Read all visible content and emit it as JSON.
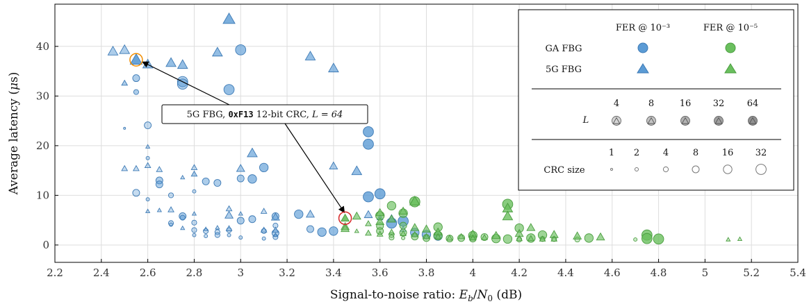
{
  "chart_data": {
    "type": "scatter",
    "xlabel": "Signal-to-noise ratio: E_b/N_0 (dB)",
    "ylabel": "Average latency (μs)",
    "xlim": [
      2.2,
      5.4
    ],
    "ylim": [
      -3.5,
      48.5
    ],
    "xticks": [
      2.2,
      2.4,
      2.6,
      2.8,
      3.0,
      3.2,
      3.4,
      3.6,
      3.8,
      4.0,
      4.2,
      4.4,
      4.6,
      4.8,
      5.0,
      5.2,
      5.4
    ],
    "xtick_labels": [
      "2.2",
      "2.4",
      "2.6",
      "2.8",
      "3",
      "3.2",
      "3.4",
      "3.6",
      "3.8",
      "4",
      "4.2",
      "4.4",
      "4.6",
      "4.8",
      "5",
      "5.2",
      "5.4"
    ],
    "yticks": [
      0,
      10,
      20,
      30,
      40
    ],
    "ytick_labels": [
      "0",
      "10",
      "20",
      "30",
      "40"
    ],
    "grid": true,
    "legend_position": "top-right",
    "colors": {
      "blue": "#5b9bd5",
      "blue_stroke": "#3d7ab5",
      "green": "#6abf5e",
      "green_stroke": "#4a9d3f",
      "highlight_orange": "#f08c00",
      "highlight_red": "#d62728"
    },
    "legend": {
      "col_fer3": "FER @ 10⁻³",
      "col_fer5": "FER @ 10⁻⁵",
      "row_ga": "GA FBG",
      "row_5g": "5G FBG",
      "L_label": "L",
      "L_values": [
        "4",
        "8",
        "16",
        "32",
        "64"
      ],
      "crc_label": "CRC size",
      "crc_values": [
        "1",
        "2",
        "4",
        "8",
        "16",
        "32"
      ]
    },
    "annotation": {
      "pre": "5G FBG,",
      "code": "0xF13",
      "mid": "12-bit CRC,",
      "tail": "L = 64",
      "targets": [
        {
          "x": 2.55,
          "y": 37.3,
          "color": "orange"
        },
        {
          "x": 3.45,
          "y": 5.4,
          "color": "red"
        }
      ]
    },
    "series": [
      {
        "name": "GA FBG, FER @ 10⁻³",
        "marker": "circle",
        "color": "blue",
        "points": [
          [
            2.5,
            23.5,
            1,
            4
          ],
          [
            2.55,
            33.6,
            4,
            8
          ],
          [
            2.55,
            30.8,
            3,
            8
          ],
          [
            2.55,
            10.5,
            4,
            4
          ],
          [
            2.6,
            24.1,
            4,
            4
          ],
          [
            2.6,
            17.5,
            2,
            4
          ],
          [
            2.6,
            9.2,
            2,
            4
          ],
          [
            2.65,
            13.0,
            4,
            8
          ],
          [
            2.65,
            12.2,
            4,
            8
          ],
          [
            2.7,
            10.0,
            3,
            4
          ],
          [
            2.7,
            4.4,
            3,
            4
          ],
          [
            2.7,
            4.1,
            2,
            4
          ],
          [
            2.75,
            32.9,
            6,
            8
          ],
          [
            2.75,
            32.4,
            6,
            8
          ],
          [
            2.75,
            5.8,
            4,
            8
          ],
          [
            2.75,
            5.5,
            3,
            8
          ],
          [
            2.8,
            10.8,
            2,
            4
          ],
          [
            2.8,
            4.5,
            3,
            4
          ],
          [
            2.8,
            3.0,
            3,
            4
          ],
          [
            2.8,
            2.0,
            2,
            4
          ],
          [
            2.85,
            12.8,
            4,
            8
          ],
          [
            2.85,
            2.8,
            3,
            4
          ],
          [
            2.85,
            1.8,
            2,
            4
          ],
          [
            2.9,
            12.5,
            4,
            8
          ],
          [
            2.9,
            2.6,
            3,
            4
          ],
          [
            2.9,
            2.0,
            3,
            4
          ],
          [
            2.95,
            31.3,
            6,
            16
          ],
          [
            2.95,
            3.0,
            3,
            4
          ],
          [
            2.95,
            2.0,
            2,
            4
          ],
          [
            3.0,
            39.3,
            6,
            16
          ],
          [
            3.0,
            13.4,
            4,
            8
          ],
          [
            3.0,
            4.9,
            4,
            8
          ],
          [
            3.0,
            1.5,
            2,
            4
          ],
          [
            3.05,
            13.3,
            5,
            16
          ],
          [
            3.05,
            5.2,
            4,
            8
          ],
          [
            3.1,
            15.6,
            5,
            16
          ],
          [
            3.1,
            2.8,
            3,
            4
          ],
          [
            3.1,
            1.3,
            2,
            4
          ],
          [
            3.15,
            5.8,
            4,
            8
          ],
          [
            3.15,
            3.9,
            3,
            4
          ],
          [
            3.15,
            2.4,
            4,
            8
          ],
          [
            3.15,
            1.6,
            3,
            4
          ],
          [
            3.25,
            6.2,
            5,
            16
          ],
          [
            3.3,
            3.2,
            4,
            8
          ],
          [
            3.35,
            2.6,
            5,
            16
          ],
          [
            3.4,
            2.8,
            5,
            16
          ],
          [
            3.55,
            22.8,
            6,
            32
          ],
          [
            3.55,
            20.3,
            6,
            32
          ],
          [
            3.55,
            9.7,
            6,
            32
          ],
          [
            3.6,
            10.3,
            6,
            32
          ],
          [
            3.65,
            4.4,
            6,
            32
          ],
          [
            3.7,
            4.8,
            6,
            32
          ],
          [
            3.75,
            2.5,
            5,
            16
          ],
          [
            3.8,
            2.1,
            5,
            16
          ],
          [
            3.85,
            1.8,
            5,
            16
          ]
        ]
      },
      {
        "name": "5G FBG, FER @ 10⁻³",
        "marker": "triangle",
        "color": "blue",
        "points": [
          [
            2.45,
            39.0,
            5,
            8
          ],
          [
            2.5,
            39.3,
            5,
            8
          ],
          [
            2.5,
            32.6,
            3,
            8
          ],
          [
            2.5,
            15.4,
            3,
            4
          ],
          [
            2.55,
            37.3,
            6,
            64
          ],
          [
            2.55,
            15.4,
            3,
            4
          ],
          [
            2.6,
            36.4,
            5,
            16
          ],
          [
            2.6,
            19.8,
            2,
            4
          ],
          [
            2.6,
            16.0,
            3,
            4
          ],
          [
            2.6,
            6.8,
            2,
            4
          ],
          [
            2.65,
            15.2,
            3,
            4
          ],
          [
            2.65,
            7.0,
            2,
            4
          ],
          [
            2.7,
            36.7,
            5,
            16
          ],
          [
            2.7,
            7.1,
            3,
            4
          ],
          [
            2.75,
            36.3,
            5,
            16
          ],
          [
            2.75,
            13.6,
            2,
            4
          ],
          [
            2.75,
            3.4,
            2,
            4
          ],
          [
            2.8,
            15.6,
            3,
            4
          ],
          [
            2.8,
            14.3,
            3,
            8
          ],
          [
            2.8,
            6.3,
            2,
            4
          ],
          [
            2.85,
            3.2,
            2,
            4
          ],
          [
            2.9,
            38.8,
            5,
            16
          ],
          [
            2.9,
            3.5,
            2,
            4
          ],
          [
            2.95,
            45.5,
            6,
            32
          ],
          [
            2.95,
            7.3,
            3,
            4
          ],
          [
            2.95,
            6.0,
            4,
            8
          ],
          [
            2.95,
            3.3,
            3,
            4
          ],
          [
            3.0,
            15.4,
            4,
            8
          ],
          [
            3.0,
            6.3,
            2,
            4
          ],
          [
            3.05,
            18.5,
            5,
            16
          ],
          [
            3.1,
            6.8,
            3,
            4
          ],
          [
            3.1,
            3.0,
            3,
            4
          ],
          [
            3.15,
            5.6,
            4,
            8
          ],
          [
            3.15,
            3.0,
            3,
            4
          ],
          [
            3.15,
            2.0,
            2,
            4
          ],
          [
            3.3,
            38.0,
            5,
            16
          ],
          [
            3.3,
            6.2,
            4,
            8
          ],
          [
            3.4,
            35.6,
            5,
            16
          ],
          [
            3.4,
            15.9,
            4,
            8
          ],
          [
            3.5,
            14.9,
            5,
            16
          ],
          [
            3.55,
            6.1,
            4,
            8
          ],
          [
            3.6,
            5.5,
            3,
            8
          ],
          [
            3.65,
            5.3,
            4,
            8
          ],
          [
            3.7,
            3.2,
            3,
            4
          ]
        ]
      },
      {
        "name": "GA FBG, FER @ 10⁻⁵",
        "marker": "circle",
        "color": "green",
        "points": [
          [
            3.6,
            5.9,
            5,
            16
          ],
          [
            3.6,
            3.8,
            4,
            8
          ],
          [
            3.6,
            2.8,
            4,
            8
          ],
          [
            3.65,
            7.9,
            5,
            16
          ],
          [
            3.65,
            2.0,
            3,
            4
          ],
          [
            3.65,
            1.5,
            3,
            4
          ],
          [
            3.7,
            6.4,
            5,
            16
          ],
          [
            3.7,
            3.9,
            4,
            8
          ],
          [
            3.7,
            2.5,
            4,
            8
          ],
          [
            3.7,
            1.4,
            2,
            4
          ],
          [
            3.75,
            8.7,
            6,
            32
          ],
          [
            3.75,
            1.7,
            4,
            8
          ],
          [
            3.8,
            1.4,
            4,
            8
          ],
          [
            3.85,
            3.6,
            5,
            16
          ],
          [
            3.85,
            1.9,
            5,
            16
          ],
          [
            3.9,
            1.3,
            4,
            8
          ],
          [
            3.95,
            1.4,
            4,
            8
          ],
          [
            4.0,
            1.9,
            5,
            16
          ],
          [
            4.0,
            1.3,
            4,
            8
          ],
          [
            4.05,
            1.6,
            4,
            8
          ],
          [
            4.1,
            1.3,
            5,
            16
          ],
          [
            4.15,
            8.2,
            6,
            32
          ],
          [
            4.15,
            1.2,
            5,
            16
          ],
          [
            4.2,
            3.4,
            5,
            16
          ],
          [
            4.2,
            1.1,
            3,
            4
          ],
          [
            4.25,
            1.4,
            5,
            16
          ],
          [
            4.3,
            2.0,
            5,
            16
          ],
          [
            4.3,
            1.2,
            3,
            4
          ],
          [
            4.35,
            1.2,
            3,
            4
          ],
          [
            4.45,
            1.1,
            3,
            4
          ],
          [
            4.5,
            1.4,
            5,
            16
          ],
          [
            4.7,
            1.1,
            2,
            4
          ],
          [
            4.75,
            2.0,
            6,
            32
          ],
          [
            4.75,
            1.3,
            6,
            32
          ],
          [
            4.8,
            1.2,
            6,
            32
          ]
        ]
      },
      {
        "name": "5G FBG, FER @ 10⁻⁵",
        "marker": "triangle",
        "color": "green",
        "points": [
          [
            3.45,
            5.4,
            4,
            64
          ],
          [
            3.45,
            3.7,
            4,
            16
          ],
          [
            3.45,
            3.3,
            4,
            16
          ],
          [
            3.5,
            5.8,
            4,
            16
          ],
          [
            3.5,
            2.8,
            2,
            4
          ],
          [
            3.55,
            4.3,
            3,
            8
          ],
          [
            3.55,
            2.4,
            3,
            8
          ],
          [
            3.6,
            6.5,
            4,
            16
          ],
          [
            3.6,
            4.7,
            4,
            16
          ],
          [
            3.6,
            2.2,
            3,
            8
          ],
          [
            3.65,
            5.2,
            4,
            16
          ],
          [
            3.65,
            2.6,
            3,
            8
          ],
          [
            3.7,
            6.8,
            4,
            16
          ],
          [
            3.7,
            2.3,
            3,
            8
          ],
          [
            3.75,
            8.8,
            5,
            32
          ],
          [
            3.75,
            3.5,
            4,
            16
          ],
          [
            3.75,
            2.1,
            3,
            8
          ],
          [
            3.8,
            3.2,
            4,
            16
          ],
          [
            3.8,
            1.7,
            3,
            8
          ],
          [
            3.85,
            2.6,
            4,
            16
          ],
          [
            3.85,
            1.7,
            3,
            8
          ],
          [
            3.9,
            1.4,
            3,
            8
          ],
          [
            3.95,
            1.7,
            3,
            8
          ],
          [
            4.0,
            2.2,
            4,
            16
          ],
          [
            4.0,
            1.4,
            3,
            8
          ],
          [
            4.05,
            1.5,
            3,
            8
          ],
          [
            4.1,
            1.9,
            4,
            16
          ],
          [
            4.15,
            7.4,
            5,
            32
          ],
          [
            4.15,
            5.8,
            5,
            32
          ],
          [
            4.2,
            2.3,
            4,
            16
          ],
          [
            4.2,
            1.3,
            3,
            8
          ],
          [
            4.25,
            3.5,
            4,
            16
          ],
          [
            4.25,
            1.3,
            3,
            8
          ],
          [
            4.3,
            1.2,
            3,
            8
          ],
          [
            4.35,
            2.1,
            4,
            16
          ],
          [
            4.35,
            1.2,
            3,
            8
          ],
          [
            4.45,
            1.8,
            4,
            16
          ],
          [
            4.55,
            1.6,
            4,
            16
          ],
          [
            5.1,
            1.1,
            2,
            4
          ],
          [
            5.15,
            1.2,
            2,
            4
          ]
        ]
      }
    ]
  }
}
